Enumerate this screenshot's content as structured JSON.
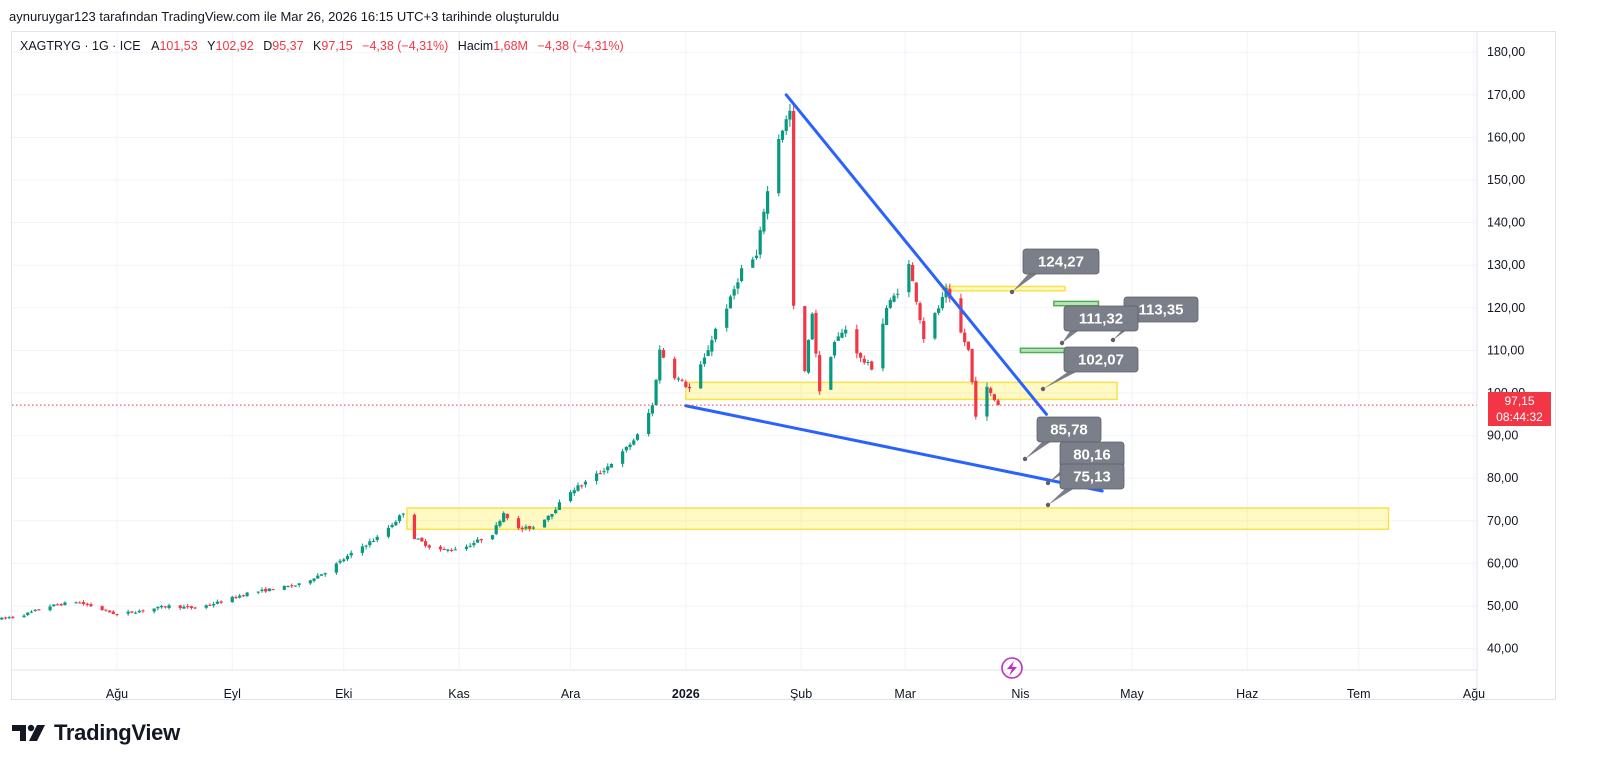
{
  "header": {
    "attribution": "aynuruygar123 tarafından TradingView.com ile Mar 26, 2026 16:15 UTC+3 tarihinde oluşturuldu"
  },
  "legend": {
    "symbol": "XAGTRYG · 1G · ICE",
    "open_label": "A",
    "open": "101,53",
    "high_label": "Y",
    "high": "102,92",
    "low_label": "D",
    "low": "95,37",
    "close_label": "K",
    "close": "97,15",
    "change": "−4,38 (−4,31%)",
    "volume_label": "Hacim",
    "volume": "1,68M",
    "volume_change": "−4,38 (−4,31%)"
  },
  "price_tag": {
    "price": "97,15",
    "countdown": "08:44:32"
  },
  "colors": {
    "up": "#089981",
    "down": "#f23645",
    "trendline": "#2962ff",
    "zone_yellow": "#ffeb3b",
    "zone_green": "#4caf50",
    "callout": "#7b7f8a"
  },
  "logo": {
    "text": "TradingView",
    "icon": "tradingview-logo-icon"
  },
  "chart_data": {
    "type": "candlestick",
    "symbol": "XAGTRYG",
    "interval": "1G",
    "ylim": [
      35,
      185
    ],
    "y_ticks": [
      "40,00",
      "50,00",
      "60,00",
      "70,00",
      "80,00",
      "90,00",
      "100,00",
      "110,00",
      "120,00",
      "130,00",
      "140,00",
      "150,00",
      "160,00",
      "170,00",
      "180,00"
    ],
    "x_ticks": [
      {
        "label": "Ağu",
        "date": "2025-08-01"
      },
      {
        "label": "Eyl",
        "date": "2025-09-01"
      },
      {
        "label": "Eki",
        "date": "2025-10-01"
      },
      {
        "label": "Kas",
        "date": "2025-11-01"
      },
      {
        "label": "Ara",
        "date": "2025-12-01"
      },
      {
        "label": "2026",
        "date": "2026-01-01"
      },
      {
        "label": "Şub",
        "date": "2026-02-01"
      },
      {
        "label": "Mar",
        "date": "2026-03-01"
      },
      {
        "label": "Nis",
        "date": "2026-04-01"
      },
      {
        "label": "May",
        "date": "2026-05-01"
      },
      {
        "label": "Haz",
        "date": "2026-06-01"
      },
      {
        "label": "Tem",
        "date": "2026-07-01"
      },
      {
        "label": "Ağu",
        "date": "2026-08-01"
      }
    ],
    "price_path": [
      [
        "2025-07-01",
        47
      ],
      [
        "2025-07-07",
        48
      ],
      [
        "2025-07-14",
        50
      ],
      [
        "2025-07-21",
        51
      ],
      [
        "2025-07-25",
        50
      ],
      [
        "2025-08-01",
        48
      ],
      [
        "2025-08-08",
        49
      ],
      [
        "2025-08-15",
        50
      ],
      [
        "2025-08-22",
        49.5
      ],
      [
        "2025-08-29",
        51
      ],
      [
        "2025-09-05",
        53
      ],
      [
        "2025-09-12",
        54
      ],
      [
        "2025-09-19",
        55
      ],
      [
        "2025-09-26",
        58
      ],
      [
        "2025-10-01",
        61
      ],
      [
        "2025-10-06",
        64
      ],
      [
        "2025-10-10",
        66
      ],
      [
        "2025-10-15",
        70
      ],
      [
        "2025-10-17",
        72
      ],
      [
        "2025-10-20",
        66
      ],
      [
        "2025-10-24",
        64
      ],
      [
        "2025-10-28",
        63
      ],
      [
        "2025-11-03",
        64
      ],
      [
        "2025-11-10",
        67
      ],
      [
        "2025-11-13",
        72
      ],
      [
        "2025-11-17",
        68
      ],
      [
        "2025-11-21",
        68.5
      ],
      [
        "2025-11-26",
        72
      ],
      [
        "2025-12-01",
        77
      ],
      [
        "2025-12-05",
        79
      ],
      [
        "2025-12-10",
        82
      ],
      [
        "2025-12-15",
        86
      ],
      [
        "2025-12-19",
        90
      ],
      [
        "2025-12-23",
        97
      ],
      [
        "2025-12-25",
        110
      ],
      [
        "2025-12-29",
        104
      ],
      [
        "2026-01-02",
        101
      ],
      [
        "2026-01-06",
        108
      ],
      [
        "2026-01-09",
        115
      ],
      [
        "2026-01-13",
        122
      ],
      [
        "2026-01-16",
        129
      ],
      [
        "2026-01-20",
        132
      ],
      [
        "2026-01-22",
        143
      ],
      [
        "2026-01-26",
        160
      ],
      [
        "2026-01-29",
        166
      ],
      [
        "2026-01-30",
        120
      ],
      [
        "2026-02-02",
        105
      ],
      [
        "2026-02-04",
        119
      ],
      [
        "2026-02-06",
        100
      ],
      [
        "2026-02-10",
        112
      ],
      [
        "2026-02-13",
        115
      ],
      [
        "2026-02-17",
        108
      ],
      [
        "2026-02-20",
        106
      ],
      [
        "2026-02-24",
        120
      ],
      [
        "2026-02-27",
        124
      ],
      [
        "2026-03-02",
        130
      ],
      [
        "2026-03-04",
        122
      ],
      [
        "2026-03-06",
        113
      ],
      [
        "2026-03-10",
        120
      ],
      [
        "2026-03-12",
        124
      ],
      [
        "2026-03-16",
        114
      ],
      [
        "2026-03-18",
        110
      ],
      [
        "2026-03-20",
        95
      ],
      [
        "2026-03-23",
        101
      ],
      [
        "2026-03-26",
        97.15
      ]
    ],
    "last_price": 97.15,
    "trendlines": [
      {
        "from": [
          "2026-01-28",
          170
        ],
        "to": [
          "2026-04-08",
          95
        ]
      },
      {
        "from": [
          "2026-01-01",
          97
        ],
        "to": [
          "2026-04-23",
          77
        ]
      }
    ],
    "zones": [
      {
        "color": "yellow",
        "from": "2025-10-18",
        "to": "2026-07-09",
        "low": 68,
        "high": 73
      },
      {
        "color": "yellow",
        "from": "2026-01-01",
        "to": "2026-04-27",
        "low": 98.5,
        "high": 102.5
      },
      {
        "color": "yellow",
        "from": "2026-03-11",
        "to": "2026-04-13",
        "low": 124,
        "high": 125
      },
      {
        "color": "green",
        "from": "2026-04-01",
        "to": "2026-04-29",
        "low": 109.5,
        "high": 110.5
      },
      {
        "color": "green",
        "from": "2026-04-10",
        "to": "2026-04-22",
        "low": 120.5,
        "high": 121.5
      }
    ],
    "annotations": [
      {
        "label": "124,27",
        "y": 124.27
      },
      {
        "label": "113,35",
        "y": 113.35
      },
      {
        "label": "111,32",
        "y": 111.32
      },
      {
        "label": "102,07",
        "y": 102.07
      },
      {
        "label": "85,78",
        "y": 85.78
      },
      {
        "label": "80,16",
        "y": 80.16
      },
      {
        "label": "75,13",
        "y": 75.13
      }
    ]
  }
}
